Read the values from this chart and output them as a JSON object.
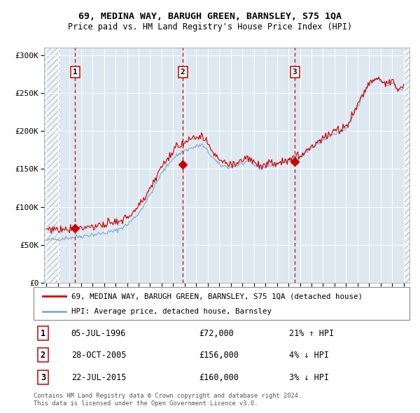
{
  "title_line1": "69, MEDINA WAY, BARUGH GREEN, BARNSLEY, S75 1QA",
  "title_line2": "Price paid vs. HM Land Registry's House Price Index (HPI)",
  "bg_color": "#dde8f0",
  "hatch_color": "#b0bfcc",
  "grid_color": "#ffffff",
  "red_line_color": "#cc0000",
  "blue_line_color": "#88aacc",
  "sale_marker_color": "#cc0000",
  "vline_color": "#cc0000",
  "ylabel_ticks": [
    "£0",
    "£50K",
    "£100K",
    "£150K",
    "£200K",
    "£250K",
    "£300K"
  ],
  "ytick_values": [
    0,
    50000,
    100000,
    150000,
    200000,
    250000,
    300000
  ],
  "ylim": [
    0,
    310000
  ],
  "xlim_start": 1993.8,
  "xlim_end": 2025.5,
  "sale_dates": [
    1996.5,
    2005.83,
    2015.55
  ],
  "sale_prices": [
    72000,
    156000,
    160000
  ],
  "sale_labels": [
    "1",
    "2",
    "3"
  ],
  "sale_date_strs": [
    "05-JUL-1996",
    "28-OCT-2005",
    "22-JUL-2015"
  ],
  "sale_price_strs": [
    "£72,000",
    "£156,000",
    "£160,000"
  ],
  "sale_hpi_strs": [
    "21% ↑ HPI",
    "4% ↓ HPI",
    "3% ↓ HPI"
  ],
  "legend_label_red": "69, MEDINA WAY, BARUGH GREEN, BARNSLEY, S75 1QA (detached house)",
  "legend_label_blue": "HPI: Average price, detached house, Barnsley",
  "footer_text": "Contains HM Land Registry data © Crown copyright and database right 2024.\nThis data is licensed under the Open Government Licence v3.0.",
  "xlabel_years": [
    1994,
    1995,
    1996,
    1997,
    1998,
    1999,
    2000,
    2001,
    2002,
    2003,
    2004,
    2005,
    2006,
    2007,
    2008,
    2009,
    2010,
    2011,
    2012,
    2013,
    2014,
    2015,
    2016,
    2017,
    2018,
    2019,
    2020,
    2021,
    2022,
    2023,
    2024,
    2025
  ],
  "hatch_right_start": 2025.0
}
